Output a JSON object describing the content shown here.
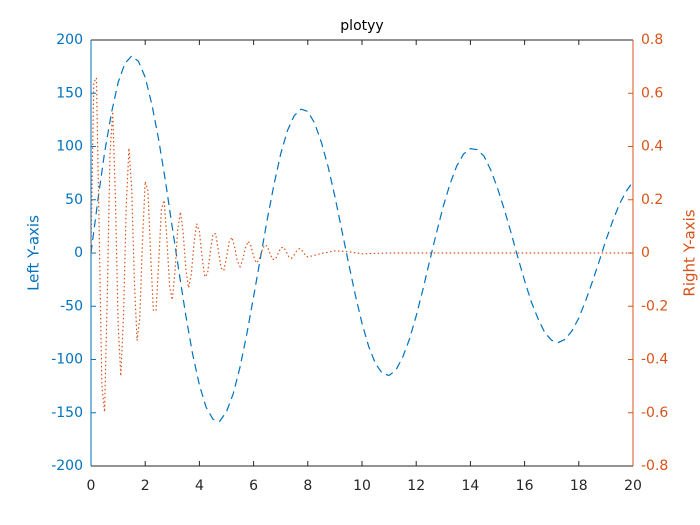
{
  "chart_data": {
    "type": "line",
    "title": "plotyy",
    "ylabel": "Left Y-axis",
    "y2label": "Right Y-axis",
    "xlim": [
      0,
      20
    ],
    "xticks": [
      0,
      2,
      4,
      6,
      8,
      10,
      12,
      14,
      16,
      18,
      20
    ],
    "ylim": [
      -200,
      200
    ],
    "yticks": [
      -200,
      -150,
      -100,
      -50,
      0,
      50,
      100,
      150,
      200
    ],
    "y2lim": [
      -0.8,
      0.8
    ],
    "y2ticks": [
      -0.8,
      -0.6,
      -0.4,
      -0.2,
      0,
      0.2,
      0.4,
      0.6,
      0.8
    ],
    "series": [
      {
        "color": "#0072bd",
        "dash": "dashed",
        "x": [
          0,
          0.25,
          0.5,
          0.75,
          1,
          1.25,
          1.5,
          1.75,
          2,
          2.25,
          2.5,
          2.75,
          3,
          3.25,
          3.5,
          3.75,
          4,
          4.25,
          4.5,
          4.75,
          5,
          5.25,
          5.5,
          5.75,
          6,
          6.25,
          6.5,
          6.75,
          7,
          7.25,
          7.5,
          7.75,
          8,
          8.25,
          8.5,
          8.75,
          9,
          9.25,
          9.5,
          9.75,
          10,
          10.25,
          10.5,
          10.75,
          11,
          11.25,
          11.5,
          11.75,
          12,
          12.25,
          12.5,
          12.75,
          13,
          13.25,
          13.5,
          13.75,
          14,
          14.25,
          14.5,
          14.75,
          15,
          15.25,
          15.5,
          15.75,
          16,
          16.25,
          16.5,
          16.75,
          17,
          17.25,
          17.5,
          17.75,
          18,
          18.25,
          18.5,
          18.75,
          19,
          19.25,
          19.5,
          19.75,
          20
        ],
        "values": [
          0,
          49,
          94,
          131,
          160,
          178,
          185,
          180,
          165,
          139,
          106,
          67,
          24,
          -18,
          -59,
          -95,
          -124,
          -145,
          -156,
          -158,
          -149,
          -132,
          -107,
          -76,
          -41,
          -5,
          31,
          64,
          93,
          115,
          129,
          135,
          133,
          122,
          104,
          81,
          53,
          22,
          -9,
          -39,
          -66,
          -88,
          -104,
          -113,
          -115,
          -110,
          -98,
          -81,
          -59,
          -34,
          -7,
          19,
          44,
          65,
          82,
          93,
          98,
          97,
          91,
          78,
          61,
          41,
          19,
          -4,
          -26,
          -46,
          -62,
          -75,
          -82,
          -84,
          -81,
          -73,
          -61,
          -45,
          -27,
          -8,
          12,
          30,
          46,
          58,
          67
        ]
      },
      {
        "color": "#d95319",
        "dash": "dotted",
        "axis": "y2",
        "x": [
          0,
          0.1,
          0.2,
          0.3,
          0.4,
          0.5,
          0.6,
          0.7,
          0.8,
          0.9,
          1,
          1.1,
          1.2,
          1.3,
          1.4,
          1.5,
          1.6,
          1.7,
          1.8,
          1.9,
          2,
          2.1,
          2.2,
          2.3,
          2.4,
          2.5,
          2.6,
          2.7,
          2.8,
          2.9,
          3,
          3.1,
          3.2,
          3.3,
          3.4,
          3.5,
          3.6,
          3.7,
          3.8,
          3.9,
          4,
          4.1,
          4.2,
          4.3,
          4.4,
          4.5,
          4.6,
          4.7,
          4.8,
          4.9,
          5,
          5.1,
          5.2,
          5.3,
          5.4,
          5.5,
          5.6,
          5.7,
          5.8,
          5.9,
          6,
          6.1,
          6.2,
          6.3,
          6.4,
          6.5,
          6.6,
          6.7,
          6.8,
          6.9,
          7,
          7.1,
          7.2,
          7.3,
          7.4,
          7.5,
          7.6,
          7.7,
          7.8,
          7.9,
          8,
          8.5,
          9,
          9.5,
          10,
          11,
          12,
          13,
          14,
          15,
          16,
          17,
          18,
          19,
          20
        ],
        "values": [
          0,
          0.64,
          0.658,
          0.097,
          -0.496,
          -0.597,
          -0.166,
          0.37,
          0.531,
          0.21,
          -0.264,
          -0.462,
          -0.236,
          0.175,
          0.394,
          0.246,
          -0.103,
          -0.329,
          -0.244,
          0.046,
          0.269,
          0.234,
          -0.002,
          -0.214,
          -0.218,
          -0.03,
          0.166,
          0.198,
          0.053,
          -0.125,
          -0.176,
          -0.069,
          0.089,
          0.154,
          0.077,
          -0.06,
          -0.131,
          -0.081,
          0.035,
          0.11,
          0.081,
          -0.016,
          -0.09,
          -0.078,
          0.002,
          0.072,
          0.072,
          0.009,
          -0.056,
          -0.066,
          -0.017,
          0.042,
          0.059,
          0.022,
          -0.03,
          -0.051,
          -0.025,
          0.02,
          0.044,
          0.027,
          -0.012,
          -0.037,
          -0.027,
          0.006,
          0.03,
          0.026,
          -0.001,
          -0.024,
          -0.024,
          -0.003,
          0.019,
          0.022,
          0.006,
          -0.014,
          -0.02,
          -0.007,
          0.01,
          0.017,
          0.008,
          -0.007,
          -0.015,
          -0.002,
          0.008,
          0.005,
          -0.003,
          0,
          0,
          0,
          0,
          0,
          0,
          0,
          0,
          0,
          0
        ]
      }
    ]
  }
}
